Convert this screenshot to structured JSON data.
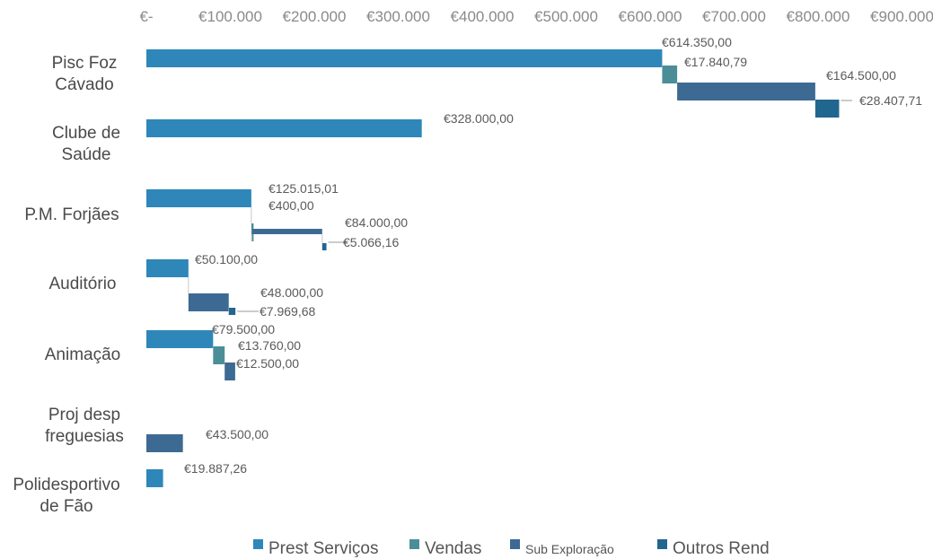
{
  "chart_data": {
    "type": "bar",
    "orientation": "horizontal",
    "stacked_waterfall": true,
    "xlim": [
      0,
      900000
    ],
    "x_ticks": [
      0,
      100000,
      200000,
      300000,
      400000,
      500000,
      600000,
      700000,
      800000,
      900000
    ],
    "x_tick_labels": [
      "€-",
      "€100.000",
      "€200.000",
      "€300.000",
      "€400.000",
      "€500.000",
      "€600.000",
      "€700.000",
      "€800.000",
      "€900.000"
    ],
    "x_axis_position": "top",
    "grid": false,
    "legend": "bottom",
    "categories": [
      {
        "label": [
          "Pisc Foz",
          "Cávado"
        ],
        "segments": [
          {
            "series": "Prest Serviços",
            "value": 614350.0,
            "label": "€614.350,00"
          },
          {
            "series": "Vendas",
            "value": 17840.79,
            "label": "€17.840,79"
          },
          {
            "series": "Sub Exploração",
            "value": 164500.0,
            "label": "€164.500,00"
          },
          {
            "series": "Outros Rend",
            "value": 28407.71,
            "label": "€28.407,71"
          }
        ]
      },
      {
        "label": [
          "Clube de",
          "Saúde"
        ],
        "segments": [
          {
            "series": "Prest Serviços",
            "value": 328000.0,
            "label": "€328.000,00"
          }
        ]
      },
      {
        "label": [
          "P.M. Forjães"
        ],
        "segments": [
          {
            "series": "Prest Serviços",
            "value": 125015.01,
            "label": "€125.015,01"
          },
          {
            "series": "Vendas",
            "value": 400.0,
            "label": "€400,00"
          },
          {
            "series": "Sub Exploração",
            "value": 84000.0,
            "label": "€84.000,00"
          },
          {
            "series": "Outros Rend",
            "value": 5066.16,
            "label": "€5.066,16"
          }
        ]
      },
      {
        "label": [
          "Auditório"
        ],
        "segments": [
          {
            "series": "Prest Serviços",
            "value": 50100.0,
            "label": "€50.100,00"
          },
          {
            "series": "Sub Exploração",
            "value": 48000.0,
            "label": "€48.000,00"
          },
          {
            "series": "Outros Rend",
            "value": 7969.68,
            "label": "€7.969,68"
          }
        ]
      },
      {
        "label": [
          "Animação"
        ],
        "segments": [
          {
            "series": "Prest Serviços",
            "value": 79500.0,
            "label": "€79.500,00"
          },
          {
            "series": "Vendas",
            "value": 13760.0,
            "label": "€13.760,00"
          },
          {
            "series": "Sub Exploração",
            "value": 12500.0,
            "label": "€12.500,00"
          }
        ]
      },
      {
        "label": [
          "Proj desp",
          "freguesias"
        ],
        "segments": [
          {
            "series": "Sub Exploração",
            "value": 43500.0,
            "label": "€43.500,00"
          }
        ]
      },
      {
        "label": [
          "Polidesportivo",
          "de Fão"
        ],
        "segments": [
          {
            "series": "Prest Serviços",
            "value": 19887.26,
            "label": "€19.887,26"
          }
        ]
      }
    ],
    "series": [
      {
        "name": "Prest Serviços",
        "color": "#2e87b8"
      },
      {
        "name": "Vendas",
        "color": "#4b8e98"
      },
      {
        "name": "Sub Exploração",
        "color": "#3d6a92"
      },
      {
        "name": "Outros Rend",
        "color": "#21668f"
      }
    ],
    "legend_labels": [
      "Prest Serviços",
      "Vendas",
      "Sub Exploração",
      "Outros Rend"
    ]
  }
}
